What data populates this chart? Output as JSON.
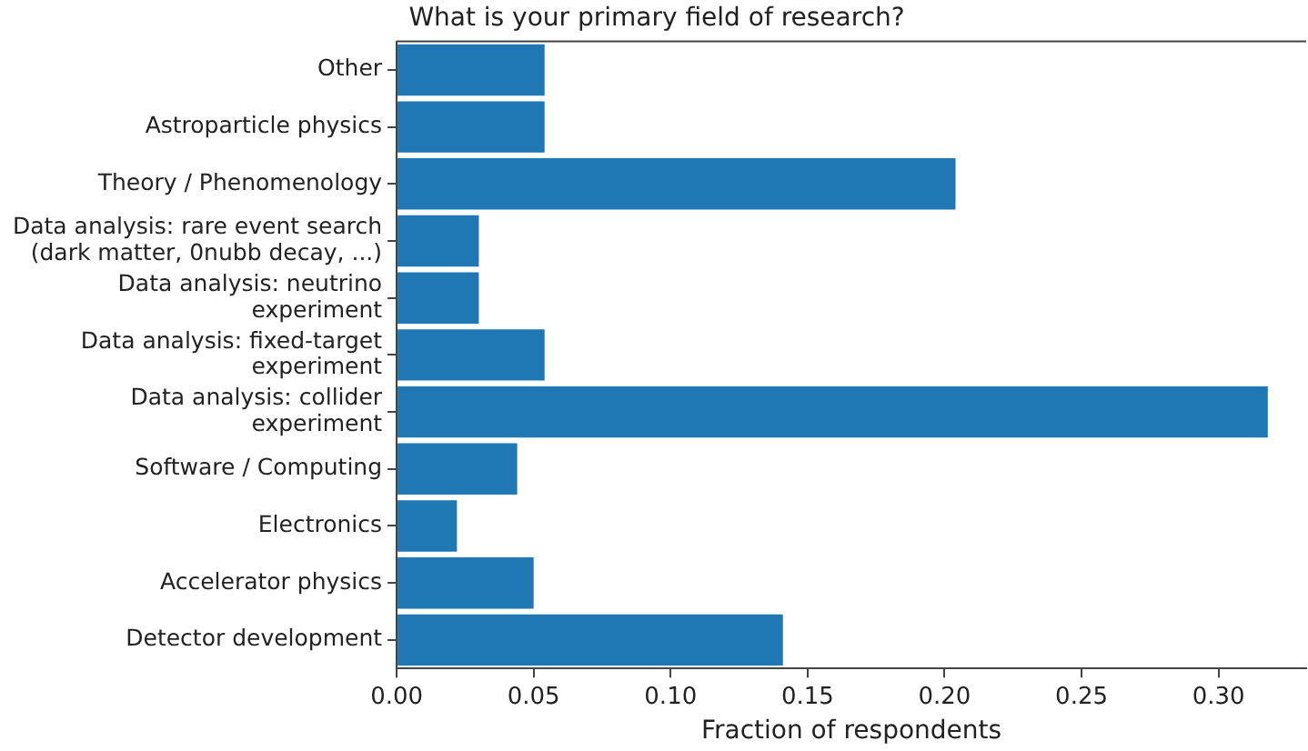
{
  "chart_data": {
    "type": "bar",
    "orientation": "horizontal",
    "title": "What is your primary field of research?",
    "xlabel": "Fraction of respondents",
    "categories": [
      "Other",
      "Astroparticle physics",
      "Theory / Phenomenology",
      "Data analysis: rare event search\n(dark matter, 0nubb decay, ...)",
      "Data analysis: neutrino\nexperiment",
      "Data analysis: fixed-target\nexperiment",
      "Data analysis: collider\nexperiment",
      "Software / Computing",
      "Electronics",
      "Accelerator physics",
      "Detector development"
    ],
    "values": [
      0.054,
      0.054,
      0.204,
      0.03,
      0.03,
      0.054,
      0.318,
      0.044,
      0.022,
      0.05,
      0.141
    ],
    "color": "#1f77b4",
    "xlim": [
      0,
      0.332
    ],
    "xticks": [
      {
        "value": 0,
        "label": "0.00"
      },
      {
        "value": 0.05,
        "label": "0.05"
      },
      {
        "value": 0.1,
        "label": "0.10"
      },
      {
        "value": 0.15,
        "label": "0.15"
      },
      {
        "value": 0.2,
        "label": "0.20"
      },
      {
        "value": 0.25,
        "label": "0.25"
      },
      {
        "value": 0.3,
        "label": "0.30"
      }
    ],
    "grid": false,
    "legend": false
  }
}
